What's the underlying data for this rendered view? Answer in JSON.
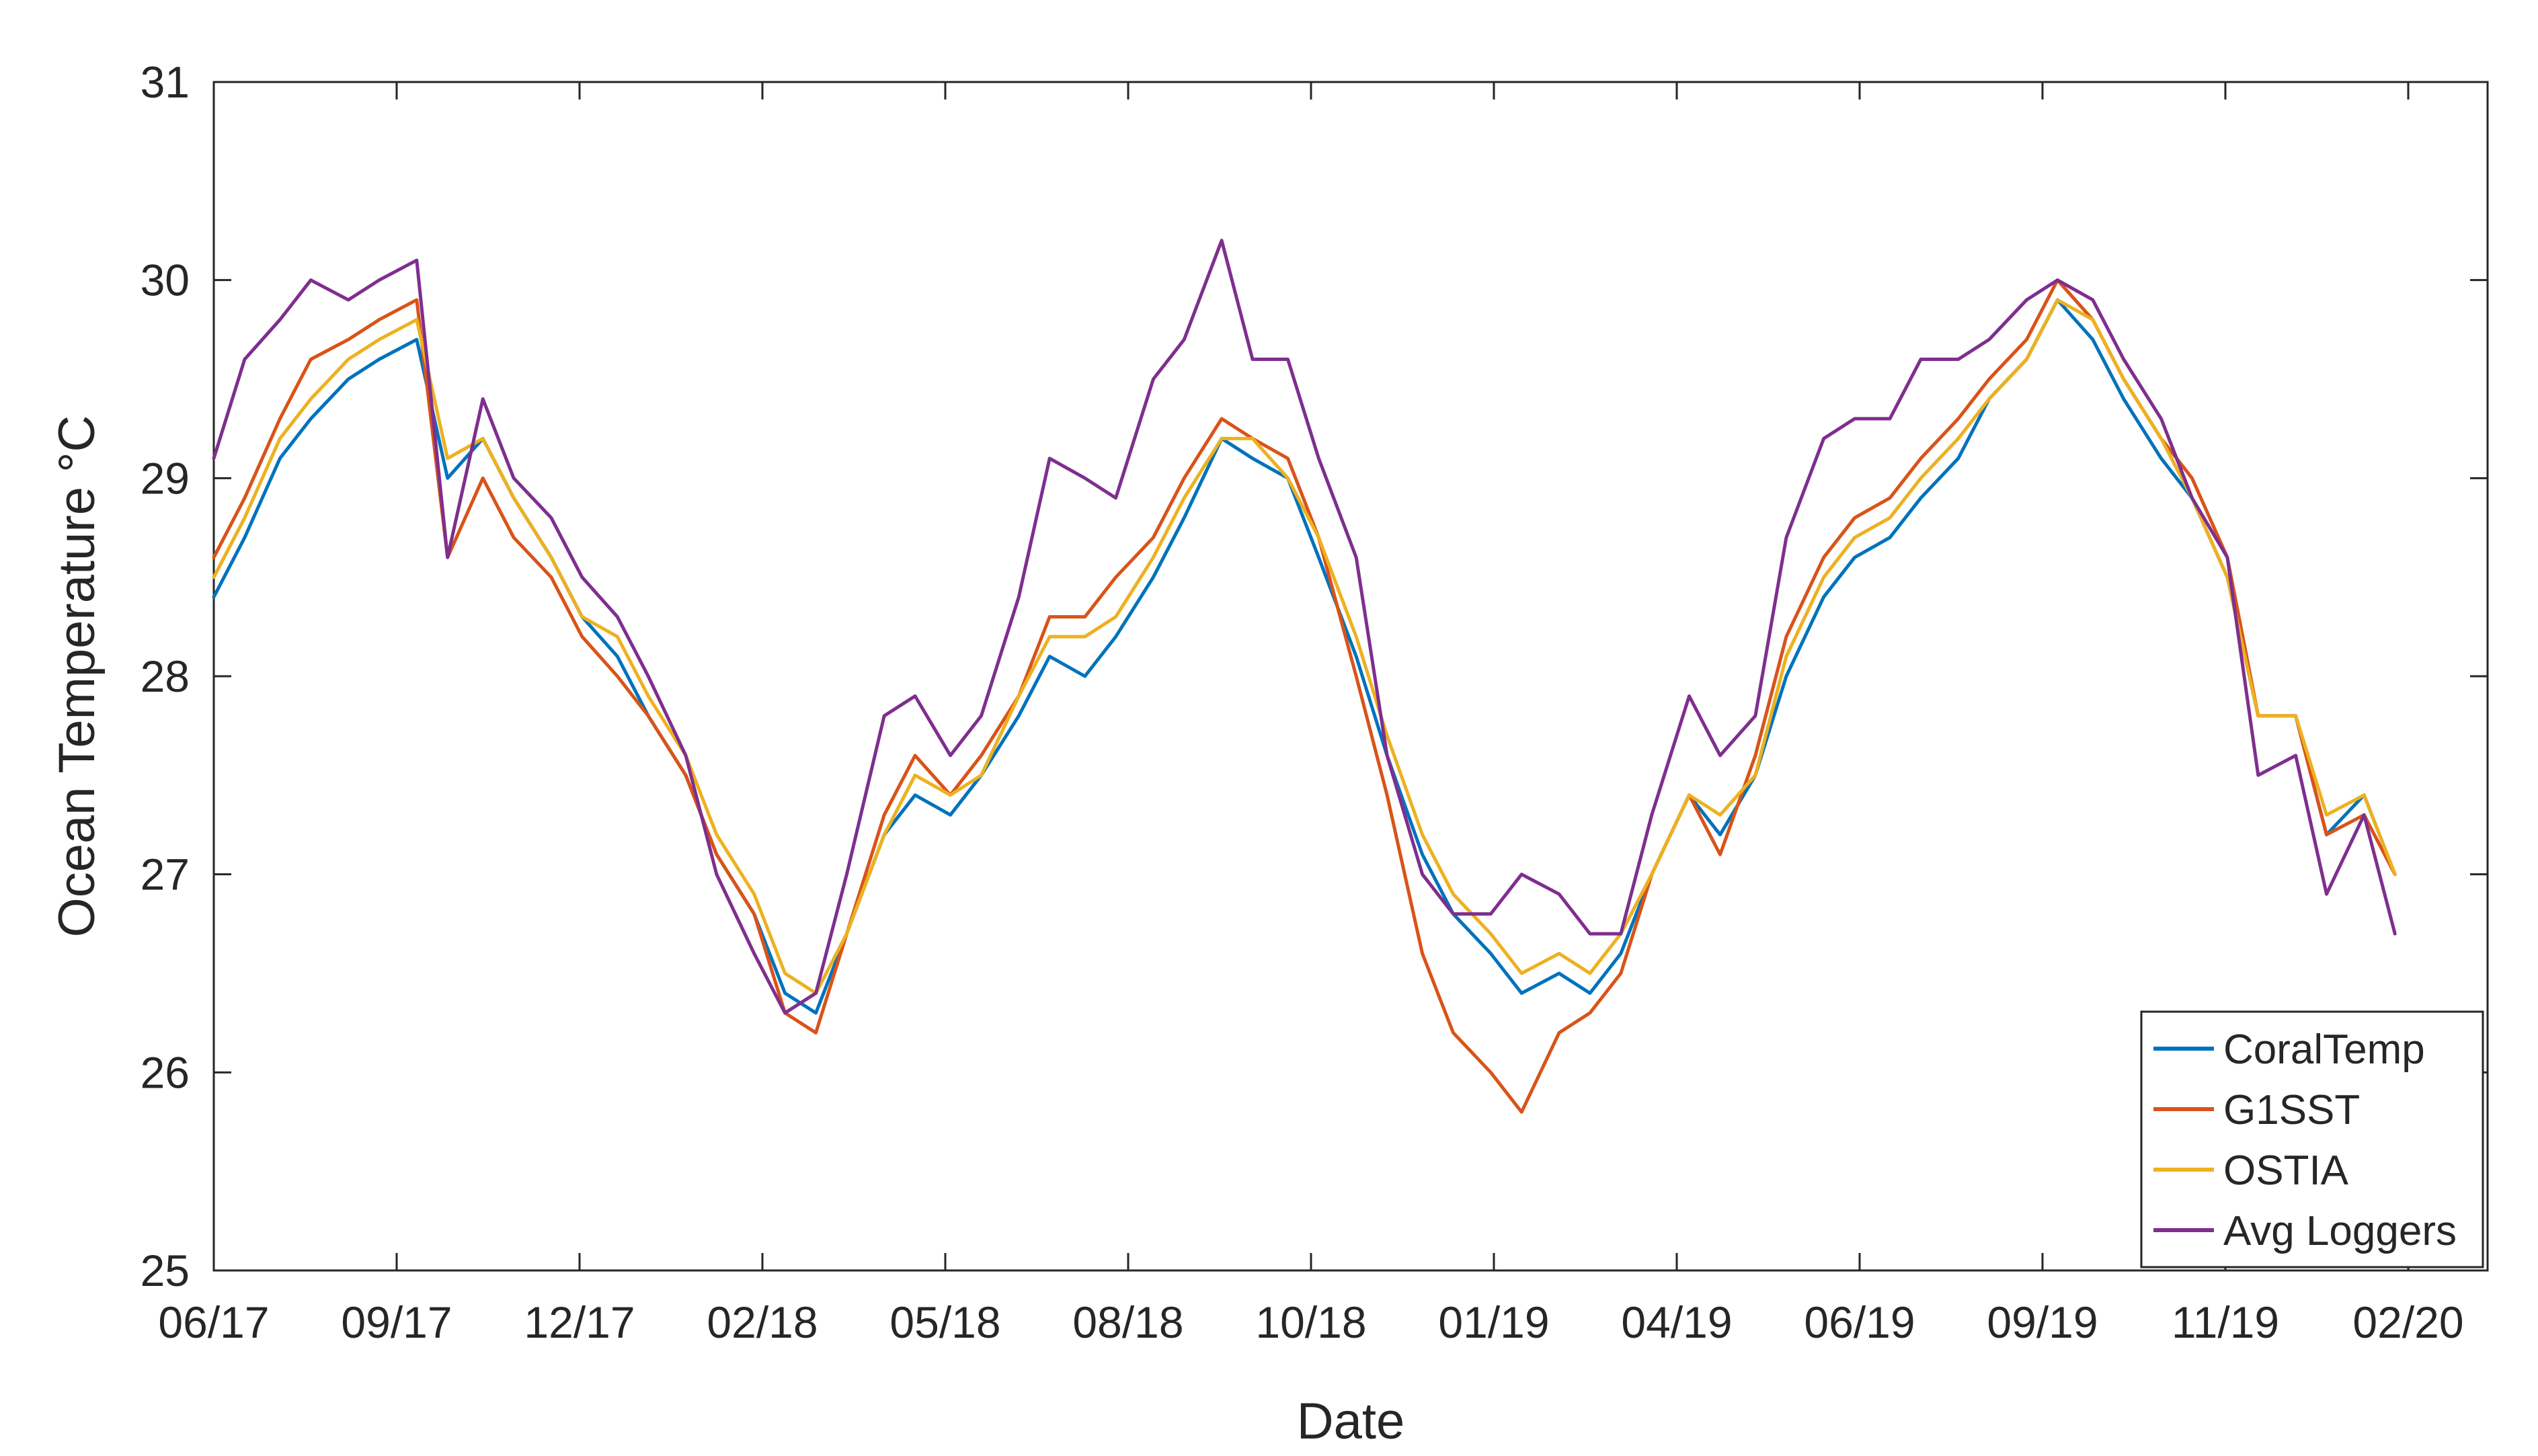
{
  "chart_data": {
    "type": "line",
    "title": "",
    "xlabel": "Date",
    "ylabel": "Ocean Temperature °C",
    "x_tick_labels": [
      "06/17",
      "09/17",
      "12/17",
      "02/18",
      "05/18",
      "08/18",
      "10/18",
      "01/19",
      "04/19",
      "06/19",
      "09/19",
      "11/19",
      "02/20"
    ],
    "y_tick_labels": [
      "25",
      "26",
      "27",
      "28",
      "29",
      "30",
      "31"
    ],
    "ylim": [
      25,
      31
    ],
    "xlim": [
      "2017-06-01",
      "2020-03-28"
    ],
    "grid": false,
    "legend_position": "bottom-right",
    "x": [
      "2017-06-01",
      "2017-06-15",
      "2017-07-01",
      "2017-07-15",
      "2017-08-01",
      "2017-08-15",
      "2017-09-01",
      "2017-09-15",
      "2017-10-01",
      "2017-10-15",
      "2017-11-01",
      "2017-11-15",
      "2017-12-01",
      "2017-12-15",
      "2018-01-01",
      "2018-01-15",
      "2018-02-01",
      "2018-02-15",
      "2018-03-01",
      "2018-03-15",
      "2018-04-01",
      "2018-04-15",
      "2018-05-01",
      "2018-05-15",
      "2018-06-01",
      "2018-06-15",
      "2018-07-01",
      "2018-07-15",
      "2018-08-01",
      "2018-08-15",
      "2018-09-01",
      "2018-09-15",
      "2018-10-01",
      "2018-10-15",
      "2018-11-01",
      "2018-11-15",
      "2018-12-01",
      "2018-12-15",
      "2019-01-01",
      "2019-01-15",
      "2019-02-01",
      "2019-02-15",
      "2019-03-01",
      "2019-03-15",
      "2019-04-01",
      "2019-04-15",
      "2019-05-01",
      "2019-05-15",
      "2019-06-01",
      "2019-06-15",
      "2019-07-01",
      "2019-07-15",
      "2019-08-01",
      "2019-08-15",
      "2019-09-01",
      "2019-09-15",
      "2019-10-01",
      "2019-10-15",
      "2019-11-01",
      "2019-11-15",
      "2019-12-01",
      "2019-12-15",
      "2020-01-01",
      "2020-01-15",
      "2020-02-01",
      "2020-02-15"
    ],
    "series": [
      {
        "name": "CoralTemp",
        "color": "#0072BD",
        "values": [
          28.4,
          28.7,
          29.1,
          29.3,
          29.5,
          29.6,
          29.7,
          29.0,
          29.2,
          28.9,
          28.6,
          28.3,
          28.1,
          27.8,
          27.5,
          27.1,
          26.8,
          26.4,
          26.3,
          26.7,
          27.2,
          27.4,
          27.3,
          27.5,
          27.8,
          28.1,
          28.0,
          28.2,
          28.5,
          28.8,
          29.2,
          29.1,
          29.0,
          28.6,
          28.1,
          27.6,
          27.1,
          26.8,
          26.6,
          26.4,
          26.5,
          26.4,
          26.6,
          27.0,
          27.4,
          27.2,
          27.5,
          28.0,
          28.4,
          28.6,
          28.7,
          28.9,
          29.1,
          29.4,
          29.6,
          29.9,
          29.7,
          29.4,
          29.1,
          28.9,
          28.5,
          27.8,
          27.8,
          27.2,
          27.4,
          27.0
        ]
      },
      {
        "name": "G1SST",
        "color": "#D95319",
        "values": [
          28.6,
          28.9,
          29.3,
          29.6,
          29.7,
          29.8,
          29.9,
          28.6,
          29.0,
          28.7,
          28.5,
          28.2,
          28.0,
          27.8,
          27.5,
          27.1,
          26.8,
          26.3,
          26.2,
          26.7,
          27.3,
          27.6,
          27.4,
          27.6,
          27.9,
          28.3,
          28.3,
          28.5,
          28.7,
          29.0,
          29.3,
          29.2,
          29.1,
          28.7,
          28.0,
          27.4,
          26.6,
          26.2,
          26.0,
          25.8,
          26.2,
          26.3,
          26.5,
          27.0,
          27.4,
          27.1,
          27.6,
          28.2,
          28.6,
          28.8,
          28.9,
          29.1,
          29.3,
          29.5,
          29.7,
          30.0,
          29.8,
          29.5,
          29.2,
          29.0,
          28.6,
          27.8,
          27.8,
          27.2,
          27.3,
          27.0
        ]
      },
      {
        "name": "OSTIA",
        "color": "#EDB120",
        "values": [
          28.5,
          28.8,
          29.2,
          29.4,
          29.6,
          29.7,
          29.8,
          29.1,
          29.2,
          28.9,
          28.6,
          28.3,
          28.2,
          27.9,
          27.6,
          27.2,
          26.9,
          26.5,
          26.4,
          26.7,
          27.2,
          27.5,
          27.4,
          27.5,
          27.9,
          28.2,
          28.2,
          28.3,
          28.6,
          28.9,
          29.2,
          29.2,
          29.0,
          28.7,
          28.2,
          27.7,
          27.2,
          26.9,
          26.7,
          26.5,
          26.6,
          26.5,
          26.7,
          27.0,
          27.4,
          27.3,
          27.5,
          28.1,
          28.5,
          28.7,
          28.8,
          29.0,
          29.2,
          29.4,
          29.6,
          29.9,
          29.8,
          29.5,
          29.2,
          28.9,
          28.5,
          27.8,
          27.8,
          27.3,
          27.4,
          27.0
        ]
      },
      {
        "name": "Avg Loggers",
        "color": "#7E2F8E",
        "values": [
          29.1,
          29.6,
          29.8,
          30.0,
          29.9,
          30.0,
          30.1,
          28.6,
          29.4,
          29.0,
          28.8,
          28.5,
          28.3,
          28.0,
          27.6,
          27.0,
          26.6,
          26.3,
          26.4,
          27.0,
          27.8,
          27.9,
          27.6,
          27.8,
          28.4,
          29.1,
          29.0,
          28.9,
          29.5,
          29.7,
          30.2,
          29.6,
          29.6,
          29.1,
          28.6,
          27.6,
          27.0,
          26.8,
          26.8,
          27.0,
          26.9,
          26.7,
          26.7,
          27.3,
          27.9,
          27.6,
          27.8,
          28.7,
          29.2,
          29.3,
          29.3,
          29.6,
          29.6,
          29.7,
          29.9,
          30.0,
          29.9,
          29.6,
          29.3,
          28.9,
          28.6,
          27.5,
          27.6,
          26.9,
          27.3,
          26.7
        ]
      }
    ]
  }
}
